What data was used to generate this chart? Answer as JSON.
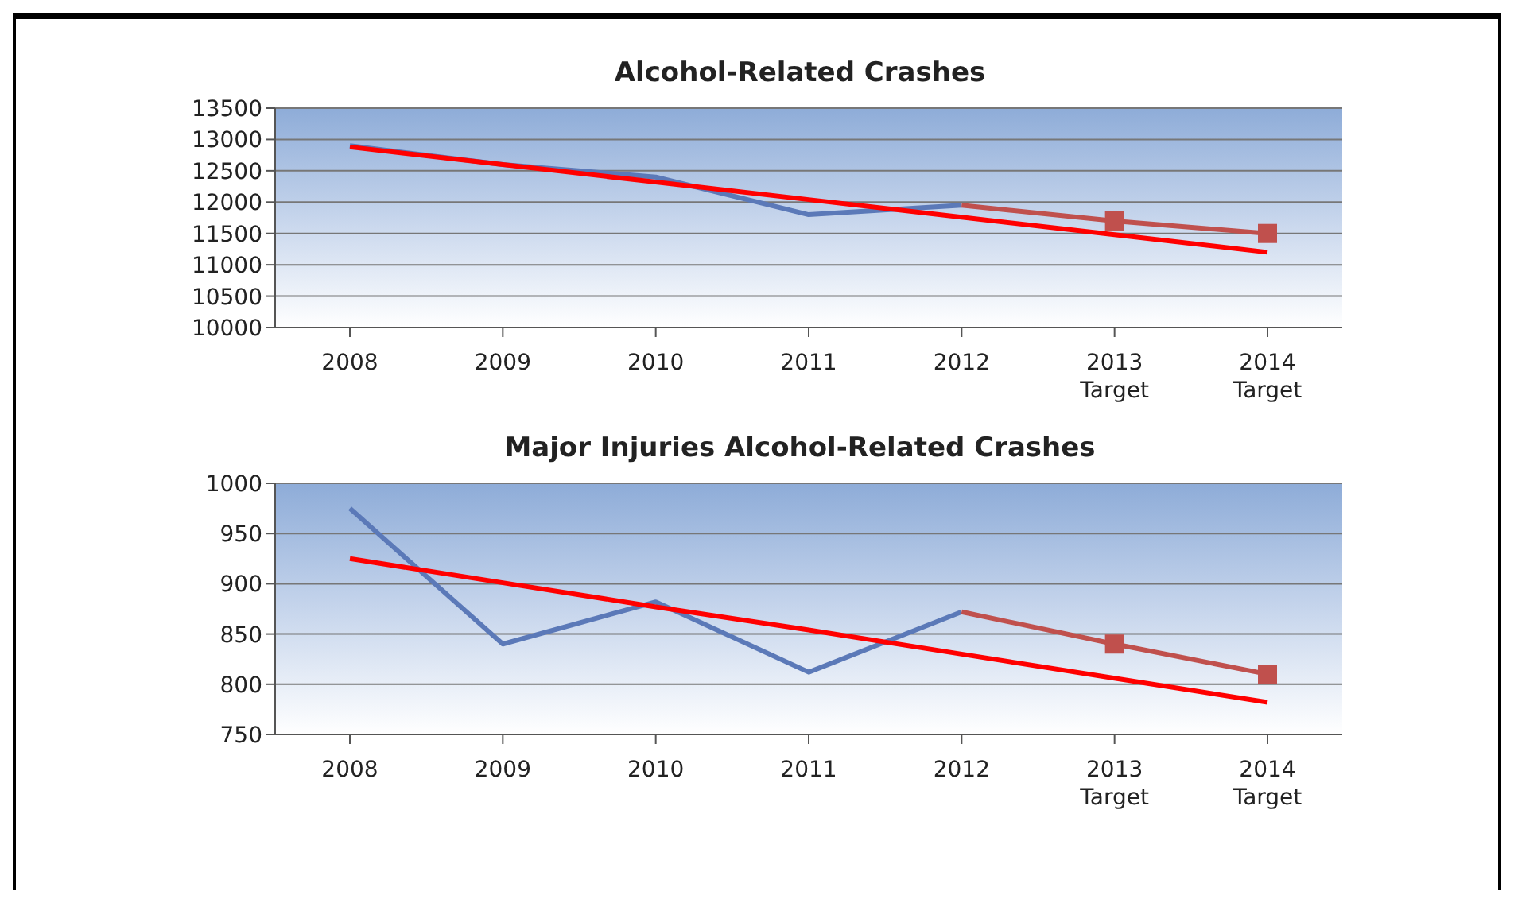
{
  "chart_data": [
    {
      "type": "line",
      "title": "Alcohol-Related Crashes",
      "categories": [
        "2008",
        "2009",
        "2010",
        "2011",
        "2012",
        "2013 Target",
        "2014 Target"
      ],
      "ylim": [
        10000,
        13500
      ],
      "yticks": [
        10000,
        10500,
        11000,
        11500,
        12000,
        12500,
        13000,
        13500
      ],
      "grid": "y",
      "series": [
        {
          "color": "#5b79b8",
          "marker": "none",
          "values": [
            12900,
            12600,
            12400,
            11800,
            11950,
            null,
            null
          ]
        },
        {
          "color": "#c0504d",
          "marker": "none",
          "values": [
            null,
            null,
            null,
            null,
            11950,
            11700,
            11500
          ]
        },
        {
          "type": "scatter",
          "color": "#c0504d",
          "marker": "square",
          "x": [
            "2013 Target",
            "2014 Target"
          ],
          "values": [
            11700,
            11500
          ]
        },
        {
          "color": "#ff0000",
          "marker": "none",
          "values": [
            12880,
            12600,
            12320,
            12040,
            11760,
            11480,
            11200
          ]
        }
      ]
    },
    {
      "type": "line",
      "title": "Major Injuries Alcohol-Related Crashes",
      "categories": [
        "2008",
        "2009",
        "2010",
        "2011",
        "2012",
        "2013 Target",
        "2014 Target"
      ],
      "ylim": [
        750,
        1000
      ],
      "yticks": [
        750,
        800,
        850,
        900,
        950,
        1000
      ],
      "grid": "y",
      "series": [
        {
          "color": "#5b79b8",
          "marker": "none",
          "values": [
            975,
            840,
            882,
            812,
            872,
            null,
            null
          ]
        },
        {
          "color": "#c0504d",
          "marker": "none",
          "values": [
            null,
            null,
            null,
            null,
            872,
            840,
            810
          ]
        },
        {
          "type": "scatter",
          "color": "#c0504d",
          "marker": "square",
          "x": [
            "2013 Target",
            "2014 Target"
          ],
          "values": [
            840,
            810
          ]
        },
        {
          "color": "#ff0000",
          "marker": "none",
          "values": [
            925,
            901,
            877,
            854,
            830,
            806,
            782
          ]
        }
      ]
    }
  ]
}
